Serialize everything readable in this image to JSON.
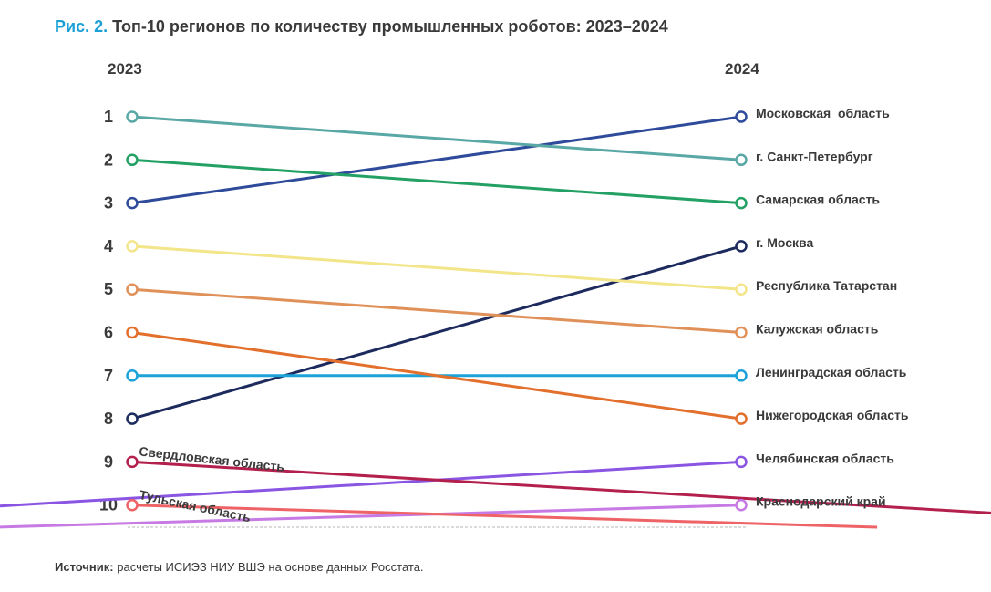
{
  "header": {
    "figure_label": "Рис. 2.",
    "title": "Топ-10 регионов по количеству промышленных роботов: 2023–2024"
  },
  "footer": {
    "source_label": "Источник:",
    "source_text": "расчеты ИСИЭЗ НИУ ВШЭ на основе данных Росстата."
  },
  "chart_data": {
    "type": "line",
    "subtype": "slope-bump",
    "title": "Топ-10 регионов по количеству промышленных роботов: 2023–2024",
    "x": [
      "2023",
      "2024"
    ],
    "y_axis": "rank",
    "y_reversed": true,
    "ranks": [
      "1",
      "2",
      "3",
      "4",
      "5",
      "6",
      "7",
      "8",
      "9",
      "10"
    ],
    "series": [
      {
        "name": "Московская  область",
        "rank_2023": 3,
        "rank_2024": 1,
        "color": "#2e4a9a"
      },
      {
        "name": "г. Санкт-Петербург",
        "rank_2023": 1,
        "rank_2024": 2,
        "color": "#5aa8a6"
      },
      {
        "name": "Самарская область",
        "rank_2023": 2,
        "rank_2024": 3,
        "color": "#23a064"
      },
      {
        "name": "г. Москва",
        "rank_2023": 8,
        "rank_2024": 4,
        "color": "#1c2a5e"
      },
      {
        "name": "Республика Татарстан",
        "rank_2023": 4,
        "rank_2024": 5,
        "color": "#f3e58a"
      },
      {
        "name": "Калужская область",
        "rank_2023": 5,
        "rank_2024": 6,
        "color": "#e0915a"
      },
      {
        "name": "Ленинградская область",
        "rank_2023": 7,
        "rank_2024": 7,
        "color": "#1ba2d8"
      },
      {
        "name": "Нижегородская область",
        "rank_2023": 6,
        "rank_2024": 8,
        "color": "#e36f2c"
      },
      {
        "name": "Челябинская область",
        "rank_2023": null,
        "rank_2024": 9,
        "color": "#8a55e3"
      },
      {
        "name": "Краснодарский край",
        "rank_2023": null,
        "rank_2024": 10,
        "color": "#c77ae3"
      },
      {
        "name": "Свердловская область",
        "rank_2023": 9,
        "rank_2024": null,
        "color": "#b3204e"
      },
      {
        "name": "Тульская область",
        "rank_2023": 10,
        "rank_2024": null,
        "color": "#ee6366"
      }
    ]
  }
}
